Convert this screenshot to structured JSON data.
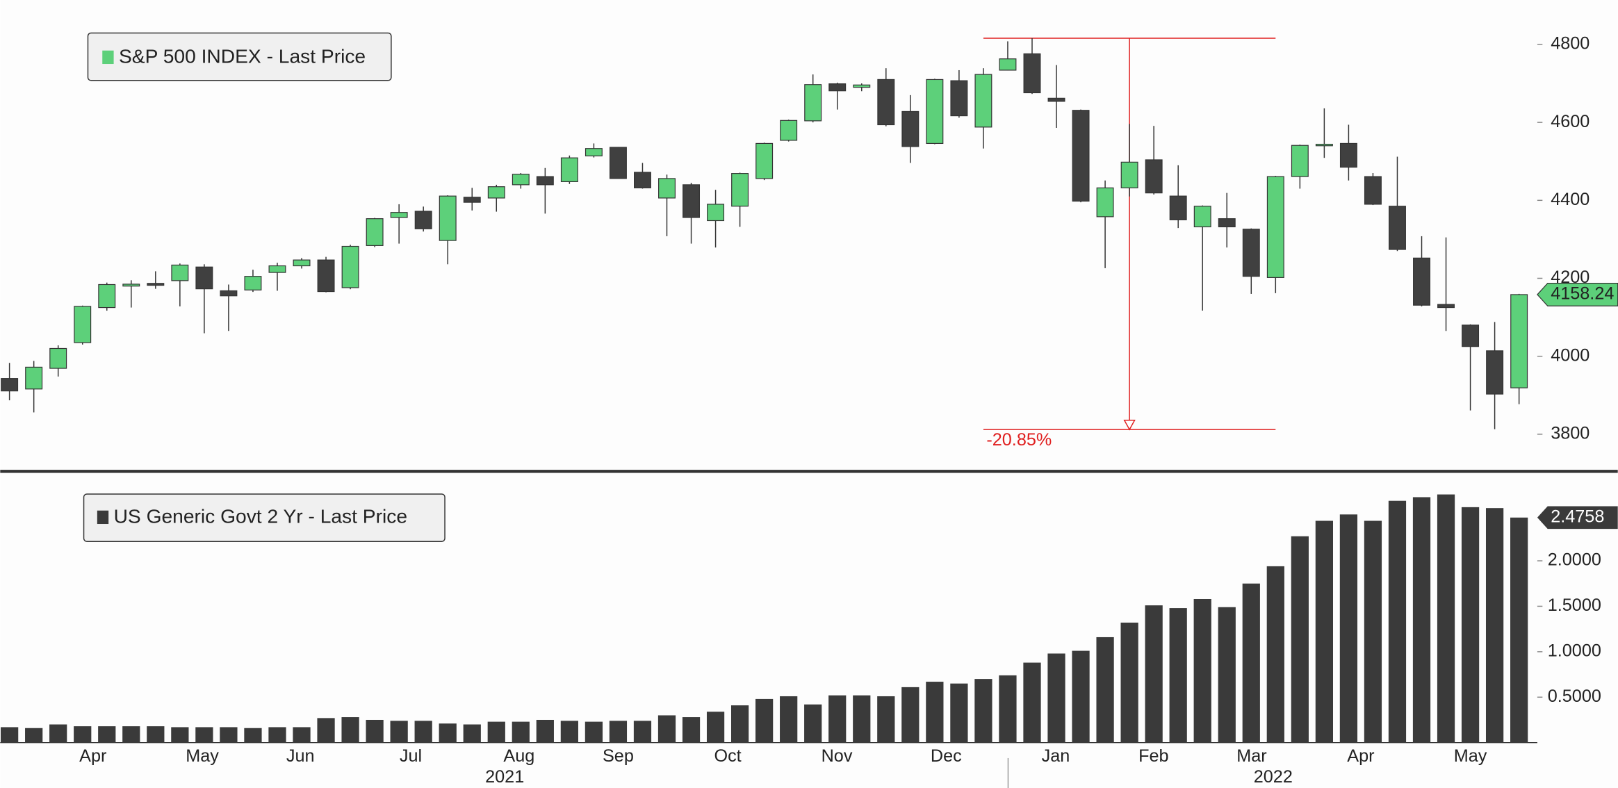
{
  "chart_data": [
    {
      "type": "candlestick",
      "series_name": "S&P 500 INDEX - Last Price",
      "up_color": "#5dd07a",
      "down_color": "#404040",
      "open": [
        3943,
        3916,
        3969,
        4035,
        4125,
        4180,
        4187,
        4194,
        4229,
        4168,
        4170,
        4215,
        4232,
        4247,
        4176,
        4284,
        4356,
        4372,
        4297,
        4408,
        4406,
        4440,
        4461,
        4448,
        4514,
        4536,
        4472,
        4406,
        4440,
        4348,
        4385,
        4456,
        4554,
        4604,
        4699,
        4690,
        4710,
        4628,
        4546,
        4707,
        4588,
        4734,
        4776,
        4662,
        4631,
        4358,
        4432,
        4504,
        4411,
        4332,
        4353,
        4326,
        4202,
        4461,
        4541,
        4546,
        4461,
        4385,
        4252,
        4133,
        4080,
        4014,
        3919
      ],
      "high": [
        3983,
        3988,
        4028,
        4130,
        4189,
        4195,
        4218,
        4238,
        4236,
        4184,
        4222,
        4240,
        4252,
        4255,
        4286,
        4355,
        4390,
        4384,
        4413,
        4432,
        4440,
        4470,
        4483,
        4515,
        4546,
        4537,
        4496,
        4466,
        4445,
        4427,
        4471,
        4548,
        4607,
        4723,
        4702,
        4700,
        4739,
        4670,
        4712,
        4734,
        4739,
        4808,
        4816,
        4747,
        4633,
        4451,
        4596,
        4591,
        4490,
        4387,
        4419,
        4328,
        4463,
        4543,
        4636,
        4594,
        4470,
        4512,
        4308,
        4305,
        4082,
        4088,
        4160
      ],
      "low": [
        3887,
        3856,
        3948,
        4030,
        4117,
        4125,
        4173,
        4128,
        4059,
        4065,
        4165,
        4168,
        4225,
        4164,
        4172,
        4280,
        4289,
        4320,
        4236,
        4374,
        4371,
        4430,
        4366,
        4442,
        4510,
        4455,
        4430,
        4308,
        4289,
        4279,
        4332,
        4452,
        4551,
        4600,
        4633,
        4680,
        4590,
        4496,
        4544,
        4612,
        4533,
        4733,
        4673,
        4586,
        4395,
        4226,
        4410,
        4415,
        4329,
        4117,
        4279,
        4160,
        4162,
        4430,
        4509,
        4451,
        4388,
        4270,
        4128,
        4065,
        3861,
        3813,
        3877
      ],
      "close": [
        3911,
        3972,
        4020,
        4128,
        4184,
        4185,
        4182,
        4234,
        4173,
        4155,
        4205,
        4232,
        4247,
        4166,
        4282,
        4353,
        4369,
        4327,
        4411,
        4395,
        4435,
        4467,
        4440,
        4509,
        4533,
        4456,
        4432,
        4456,
        4356,
        4390,
        4469,
        4546,
        4605,
        4697,
        4681,
        4696,
        4594,
        4538,
        4710,
        4617,
        4723,
        4763,
        4676,
        4654,
        4398,
        4432,
        4498,
        4419,
        4350,
        4385,
        4332,
        4205,
        4461,
        4541,
        4544,
        4485,
        4390,
        4274,
        4131,
        4125,
        4025,
        3903,
        4158.24
      ],
      "ylim": [
        3710,
        4914
      ],
      "yticks": [
        3800,
        4000,
        4200,
        4400,
        4600,
        4800
      ],
      "xlim": [
        -0.38,
        62.75
      ],
      "drawdown": {
        "label": "-20.85%",
        "high": 4816,
        "low": 3812,
        "color": "#e02020"
      }
    },
    {
      "type": "bar",
      "series_name": "US Generic Govt 2 Yr - Last Price",
      "color": "#3a3a3a",
      "values": [
        0.17,
        0.16,
        0.2,
        0.18,
        0.18,
        0.18,
        0.18,
        0.17,
        0.17,
        0.17,
        0.16,
        0.17,
        0.17,
        0.27,
        0.28,
        0.25,
        0.24,
        0.24,
        0.21,
        0.2,
        0.23,
        0.23,
        0.25,
        0.24,
        0.23,
        0.24,
        0.24,
        0.3,
        0.28,
        0.34,
        0.41,
        0.48,
        0.51,
        0.42,
        0.52,
        0.52,
        0.51,
        0.61,
        0.67,
        0.65,
        0.7,
        0.74,
        0.88,
        0.98,
        1.01,
        1.16,
        1.32,
        1.51,
        1.48,
        1.58,
        1.49,
        1.75,
        1.94,
        2.27,
        2.44,
        2.51,
        2.44,
        2.66,
        2.7,
        2.73,
        2.59,
        2.58,
        2.4758
      ],
      "ylim": [
        0,
        2.95
      ],
      "yticks": [
        {
          "value": 0.5,
          "label": "0.5000"
        },
        {
          "value": 1,
          "label": "1.0000"
        },
        {
          "value": 1.5,
          "label": "1.5000"
        },
        {
          "value": 2,
          "label": "2.0000"
        }
      ],
      "xlim": [
        -0.38,
        62.75
      ],
      "xticks": [
        {
          "value": 3.43,
          "label": "Apr"
        },
        {
          "value": 7.92,
          "label": "May"
        },
        {
          "value": 11.95,
          "label": "Jun"
        },
        {
          "value": 16.48,
          "label": "Jul"
        },
        {
          "value": 20.93,
          "label": "Aug"
        },
        {
          "value": 25.0,
          "label": "Sep"
        },
        {
          "value": 29.5,
          "label": "Oct"
        },
        {
          "value": 33.98,
          "label": "Nov"
        },
        {
          "value": 38.47,
          "label": "Dec"
        },
        {
          "value": 42.97,
          "label": "Jan"
        },
        {
          "value": 46.99,
          "label": "Feb"
        },
        {
          "value": 51.02,
          "label": "Mar"
        },
        {
          "value": 55.5,
          "label": "Apr"
        },
        {
          "value": 60.0,
          "label": "May"
        }
      ],
      "year_labels": [
        {
          "value": 20.34,
          "label": "2021"
        },
        {
          "value": 51.9,
          "label": "2022"
        }
      ]
    }
  ]
}
